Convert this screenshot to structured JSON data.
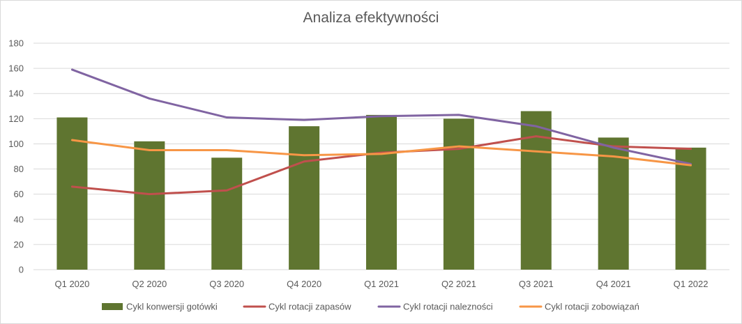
{
  "chart_data": {
    "type": "bar",
    "title": "Analiza efektywności",
    "categories": [
      "Q1 2020",
      "Q2 2020",
      "Q3 2020",
      "Q4 2020",
      "Q1 2021",
      "Q2 2021",
      "Q3 2021",
      "Q4 2021",
      "Q1 2022"
    ],
    "ylim": [
      0,
      180
    ],
    "yticks": [
      0,
      20,
      40,
      60,
      80,
      100,
      120,
      140,
      160,
      180
    ],
    "grid": true,
    "legend_position": "bottom",
    "series": [
      {
        "name": "Cykl konwersji gotówki",
        "kind": "bar",
        "color": "#5f7530",
        "values": [
          121,
          102,
          89,
          114,
          123,
          120,
          126,
          105,
          97
        ]
      },
      {
        "name": "Cykl rotacji zapasów",
        "kind": "line",
        "color": "#c0504d",
        "values": [
          66,
          60,
          63,
          86,
          93,
          96,
          106,
          98,
          96
        ]
      },
      {
        "name": "Cykl rotacji nalezności",
        "kind": "line",
        "color": "#8064a2",
        "values": [
          159,
          136,
          121,
          119,
          122,
          123,
          114,
          97,
          84
        ]
      },
      {
        "name": "Cykl rotacji zobowiązań",
        "kind": "line",
        "color": "#f79646",
        "values": [
          103,
          95,
          95,
          91,
          92,
          98,
          94,
          90,
          83
        ]
      }
    ]
  }
}
